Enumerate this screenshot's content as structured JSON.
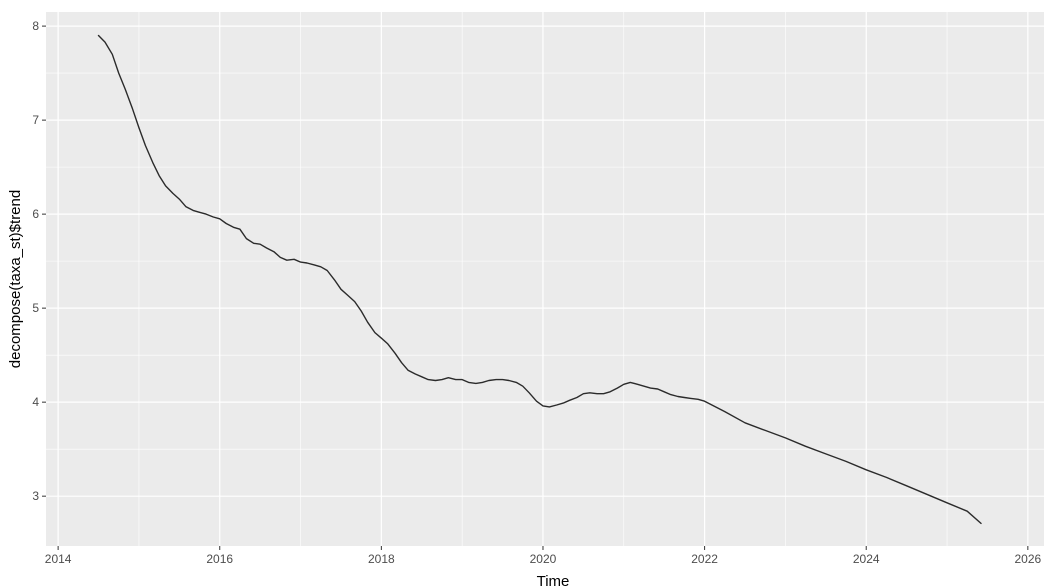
{
  "chart_data": {
    "type": "line",
    "xlabel": "Time",
    "ylabel": "decompose(taxa_st)$trend",
    "xlim": [
      2013.85,
      2026.2
    ],
    "ylim": [
      2.47,
      8.15
    ],
    "x_ticks": [
      2014,
      2016,
      2018,
      2020,
      2022,
      2024,
      2026
    ],
    "x_tick_labels": [
      "2014",
      "2016",
      "2018",
      "2020",
      "2022",
      "2024",
      "2026"
    ],
    "y_ticks": [
      3,
      4,
      5,
      6,
      7,
      8
    ],
    "y_tick_labels": [
      "3",
      "4",
      "5",
      "6",
      "7",
      "8"
    ],
    "grid": true,
    "legend": "none",
    "colors": {
      "panel": "#ebebeb",
      "grid_major": "#ffffff",
      "line": "#2b2b2b",
      "tick_text": "#4d4d4d"
    },
    "series": [
      {
        "x": [
          2014.5,
          2014.58,
          2014.67,
          2014.75,
          2014.83,
          2014.92,
          2015.0,
          2015.08,
          2015.17,
          2015.25,
          2015.33,
          2015.42,
          2015.5,
          2015.58,
          2015.67,
          2015.75,
          2015.83,
          2015.92,
          2016.0,
          2016.08,
          2016.17,
          2016.25,
          2016.33,
          2016.42,
          2016.5,
          2016.58,
          2016.67,
          2016.75,
          2016.83,
          2016.92,
          2017.0,
          2017.08,
          2017.17,
          2017.25,
          2017.33,
          2017.42,
          2017.5,
          2017.58,
          2017.67,
          2017.75,
          2017.83,
          2017.92,
          2018.0,
          2018.08,
          2018.17,
          2018.25,
          2018.33,
          2018.42,
          2018.5,
          2018.58,
          2018.67,
          2018.75,
          2018.83,
          2018.92,
          2019.0,
          2019.08,
          2019.17,
          2019.25,
          2019.33,
          2019.42,
          2019.5,
          2019.58,
          2019.67,
          2019.75,
          2019.83,
          2019.92,
          2020.0,
          2020.08,
          2020.17,
          2020.25,
          2020.33,
          2020.42,
          2020.5,
          2020.58,
          2020.67,
          2020.75,
          2020.83,
          2020.92,
          2021.0,
          2021.08,
          2021.17,
          2021.25,
          2021.33,
          2021.42,
          2021.5,
          2021.58,
          2021.67,
          2021.75,
          2021.83,
          2021.92,
          2022.0,
          2022.25,
          2022.5,
          2022.75,
          2023.0,
          2023.25,
          2023.5,
          2023.75,
          2024.0,
          2024.25,
          2024.5,
          2024.75,
          2025.0,
          2025.25,
          2025.42
        ],
        "y": [
          7.9,
          7.83,
          7.7,
          7.5,
          7.33,
          7.12,
          6.92,
          6.73,
          6.55,
          6.41,
          6.3,
          6.22,
          6.16,
          6.08,
          6.04,
          6.02,
          6.0,
          5.97,
          5.95,
          5.9,
          5.86,
          5.84,
          5.74,
          5.69,
          5.68,
          5.64,
          5.6,
          5.54,
          5.51,
          5.52,
          5.49,
          5.48,
          5.46,
          5.44,
          5.4,
          5.3,
          5.2,
          5.14,
          5.07,
          4.97,
          4.85,
          4.74,
          4.68,
          4.62,
          4.52,
          4.42,
          4.34,
          4.3,
          4.27,
          4.24,
          4.23,
          4.24,
          4.26,
          4.24,
          4.24,
          4.21,
          4.2,
          4.21,
          4.23,
          4.24,
          4.24,
          4.23,
          4.21,
          4.17,
          4.1,
          4.01,
          3.96,
          3.95,
          3.97,
          3.99,
          4.02,
          4.05,
          4.09,
          4.1,
          4.09,
          4.09,
          4.11,
          4.15,
          4.19,
          4.21,
          4.19,
          4.17,
          4.15,
          4.14,
          4.11,
          4.08,
          4.06,
          4.05,
          4.04,
          4.03,
          4.01,
          3.9,
          3.78,
          3.7,
          3.62,
          3.53,
          3.45,
          3.37,
          3.28,
          3.2,
          3.11,
          3.02,
          2.93,
          2.84,
          2.71
        ]
      }
    ]
  }
}
